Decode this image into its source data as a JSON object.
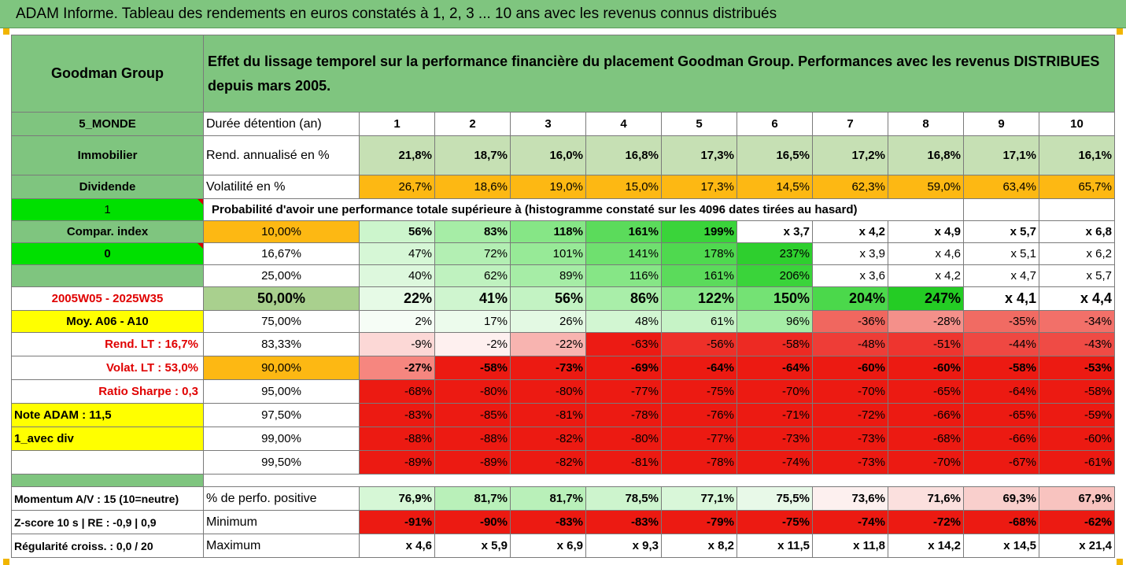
{
  "header": {
    "banner": "ADAM Informe. Tableau des rendements en euros constatés à 1, 2, 3 ... 10 ans avec les revenus connus distribués"
  },
  "side": {
    "fund": "Goodman Group",
    "region": "5_MONDE",
    "sector": "Immobilier",
    "dividend": "Dividende",
    "flag1": "1",
    "compar_index": "Compar. index",
    "flag0": "0",
    "period": "2005W05 - 2025W35",
    "moy": "Moy. A06 - A10",
    "rend_lt": "Rend. LT :   16,7%",
    "volat_lt": "Volat. LT :   53,0%",
    "sharpe": "Ratio Sharpe :   0,3",
    "note": "Note ADAM : 11,5",
    "avec_div": "1_avec div"
  },
  "main": {
    "title": "Effet du lissage temporel sur la performance financière du placement Goodman Group. Performances avec les revenus DISTRIBUES depuis mars 2005.",
    "duree_label": "Durée détention (an)",
    "years": [
      "1",
      "2",
      "3",
      "4",
      "5",
      "6",
      "7",
      "8",
      "9",
      "10"
    ],
    "rend_label": "Rend. annualisé en %",
    "rend": [
      "21,8%",
      "18,7%",
      "16,0%",
      "16,8%",
      "17,3%",
      "16,5%",
      "17,2%",
      "16,8%",
      "17,1%",
      "16,1%"
    ],
    "vol_label": "Volatilité en %",
    "vol": [
      "26,7%",
      "18,6%",
      "19,0%",
      "15,0%",
      "17,3%",
      "14,5%",
      "62,3%",
      "59,0%",
      "63,4%",
      "65,7%"
    ],
    "proba_label": "Probabilité d'avoir une performance totale supérieure à (histogramme constaté sur les 4096 dates tirées au hasard)"
  },
  "quantiles": [
    {
      "q": "10,00%",
      "v": [
        "56%",
        "83%",
        "118%",
        "161%",
        "199%",
        "x 3,7",
        "x 4,2",
        "x 4,9",
        "x 5,7",
        "x 6,8"
      ]
    },
    {
      "q": "16,67%",
      "v": [
        "47%",
        "72%",
        "101%",
        "141%",
        "178%",
        "237%",
        "x 3,9",
        "x 4,6",
        "x 5,1",
        "x 6,2"
      ]
    },
    {
      "q": "25,00%",
      "v": [
        "40%",
        "62%",
        "89%",
        "116%",
        "161%",
        "206%",
        "x 3,6",
        "x 4,2",
        "x 4,7",
        "x 5,7"
      ]
    },
    {
      "q": "50,00%",
      "v": [
        "22%",
        "41%",
        "56%",
        "86%",
        "122%",
        "150%",
        "204%",
        "247%",
        "x 4,1",
        "x 4,4"
      ]
    },
    {
      "q": "75,00%",
      "v": [
        "2%",
        "17%",
        "26%",
        "48%",
        "61%",
        "96%",
        "-36%",
        "-28%",
        "-35%",
        "-34%"
      ]
    },
    {
      "q": "83,33%",
      "v": [
        "-9%",
        "-2%",
        "-22%",
        "-63%",
        "-56%",
        "-58%",
        "-48%",
        "-51%",
        "-44%",
        "-43%"
      ]
    },
    {
      "q": "90,00%",
      "v": [
        "-27%",
        "-58%",
        "-73%",
        "-69%",
        "-64%",
        "-64%",
        "-60%",
        "-60%",
        "-58%",
        "-53%"
      ]
    },
    {
      "q": "95,00%",
      "v": [
        "-68%",
        "-80%",
        "-80%",
        "-77%",
        "-75%",
        "-70%",
        "-70%",
        "-65%",
        "-64%",
        "-58%"
      ]
    },
    {
      "q": "97,50%",
      "v": [
        "-83%",
        "-85%",
        "-81%",
        "-78%",
        "-76%",
        "-71%",
        "-72%",
        "-66%",
        "-65%",
        "-59%"
      ]
    },
    {
      "q": "99,00%",
      "v": [
        "-88%",
        "-88%",
        "-82%",
        "-80%",
        "-77%",
        "-73%",
        "-73%",
        "-68%",
        "-66%",
        "-60%"
      ]
    },
    {
      "q": "99,50%",
      "v": [
        "-89%",
        "-89%",
        "-82%",
        "-81%",
        "-78%",
        "-74%",
        "-73%",
        "-70%",
        "-67%",
        "-61%"
      ]
    }
  ],
  "footer": {
    "momentum": "Momentum A/V : 15 (10=neutre)",
    "zscore": "Z-score 10 s  |  RE : -0,9  |  0,9",
    "regularite": "Régularité croiss. : 0,0 / 20",
    "pos_label": "% de perfo. positive",
    "pos": [
      "76,9%",
      "81,7%",
      "81,7%",
      "78,5%",
      "77,1%",
      "75,5%",
      "73,6%",
      "71,6%",
      "69,3%",
      "67,9%"
    ],
    "min_label": "Minimum",
    "min": [
      "-91%",
      "-90%",
      "-83%",
      "-83%",
      "-79%",
      "-75%",
      "-74%",
      "-72%",
      "-68%",
      "-62%"
    ],
    "max_label": "Maximum",
    "max": [
      "x 4,6",
      "x 5,9",
      "x 6,9",
      "x 9,3",
      "x 8,2",
      "x 11,5",
      "x 11,8",
      "x 14,2",
      "x 14,5",
      "x 21,4"
    ]
  },
  "colors": {
    "header_green": "#7fc57f",
    "light_green": "#c6e0b4",
    "orange": "#fdb813",
    "yellow": "#ffff00",
    "bright_green": "#00e000",
    "red": "#ff0000"
  }
}
